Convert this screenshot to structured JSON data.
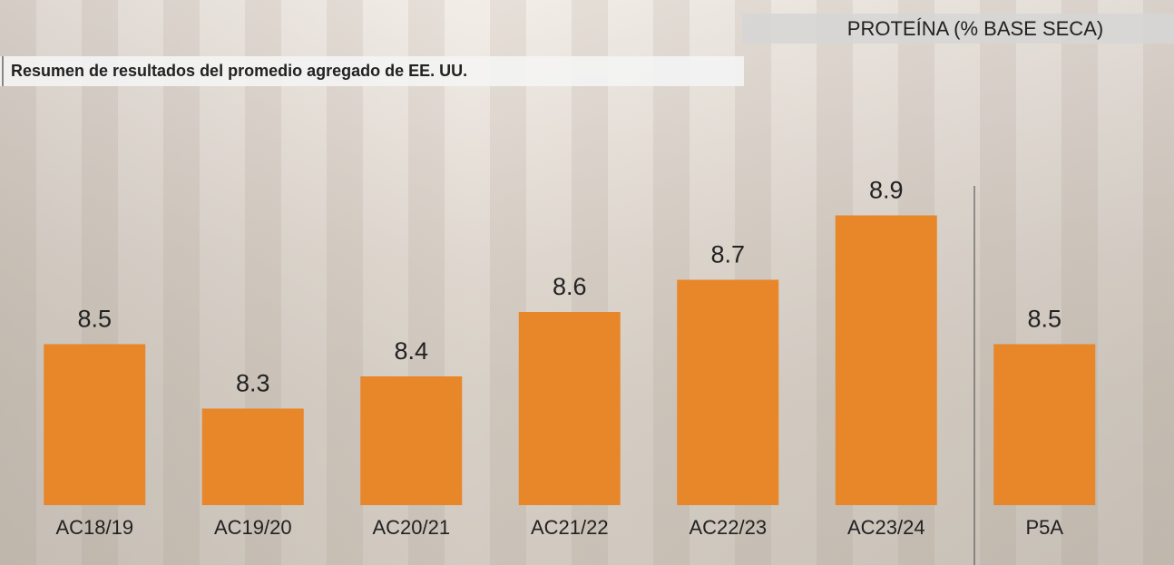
{
  "chart_data": {
    "type": "bar",
    "title": "PROTEÍNA (% BASE SECA)",
    "subtitle": "Resumen de resultados del promedio agregado de EE. UU.",
    "categories": [
      "AC18/19",
      "AC19/20",
      "AC20/21",
      "AC21/22",
      "AC22/23",
      "AC23/24",
      "P5A"
    ],
    "values": [
      8.5,
      8.3,
      8.4,
      8.6,
      8.7,
      8.9,
      8.5
    ],
    "color": "#e8862a",
    "ylim": [
      8.0,
      9.0
    ]
  }
}
